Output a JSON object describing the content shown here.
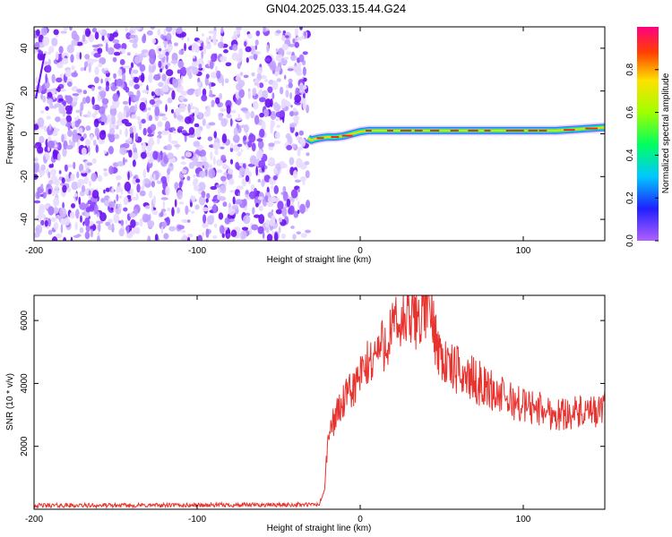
{
  "title": "GN04.2025.033.15.44.G24",
  "chart_data": [
    {
      "type": "heatmap",
      "xlabel": "Height of straight line (km)",
      "ylabel": "Frequency (Hz)",
      "xlim": [
        -200,
        150
      ],
      "ylim": [
        -50,
        50
      ],
      "x_ticks": [
        -200,
        -100,
        0,
        100
      ],
      "y_ticks": [
        40,
        20,
        0,
        -20,
        -40
      ],
      "noise_region_x": [
        -200,
        -32
      ],
      "ridge": {
        "x": [
          -32,
          -30,
          -28,
          -25,
          -20,
          -15,
          -10,
          -5,
          0,
          5,
          10,
          20,
          40,
          60,
          80,
          100,
          120,
          140,
          150
        ],
        "y": [
          -2,
          -3,
          -2.5,
          -2,
          -1.5,
          -1.5,
          -1,
          0,
          1,
          1.5,
          1.5,
          1.5,
          1.5,
          1.5,
          1.5,
          1.5,
          1.5,
          2.5,
          3
        ]
      },
      "colorbar": {
        "label": "Normalized spectral amplitude",
        "range": [
          0,
          1
        ],
        "ticks": [
          0.0,
          0.2,
          0.4,
          0.6,
          0.8
        ]
      }
    },
    {
      "type": "line",
      "xlabel": "Height of straight line (km)",
      "ylabel": "SNR (10 * v/v)",
      "xlim": [
        -200,
        150
      ],
      "ylim": [
        0,
        6800
      ],
      "x_ticks": [
        -200,
        -100,
        0,
        100
      ],
      "y_ticks": [
        2000,
        4000,
        6000
      ],
      "series": [
        {
          "color": "#e8322e",
          "x": [
            -200,
            -150,
            -100,
            -50,
            -25,
            -22,
            -20,
            -18,
            -15,
            -10,
            -5,
            0,
            5,
            10,
            15,
            20,
            25,
            30,
            35,
            40,
            42,
            45,
            50,
            55,
            60,
            70,
            80,
            90,
            100,
            110,
            120,
            130,
            140,
            150
          ],
          "y": [
            120,
            120,
            130,
            140,
            150,
            600,
            2000,
            2600,
            3000,
            3400,
            3800,
            4200,
            4600,
            5000,
            5300,
            5700,
            5900,
            6000,
            6100,
            6500,
            6600,
            5800,
            4800,
            4500,
            4400,
            4100,
            3800,
            3500,
            3300,
            3200,
            3000,
            3100,
            3000,
            3200
          ]
        }
      ]
    }
  ]
}
